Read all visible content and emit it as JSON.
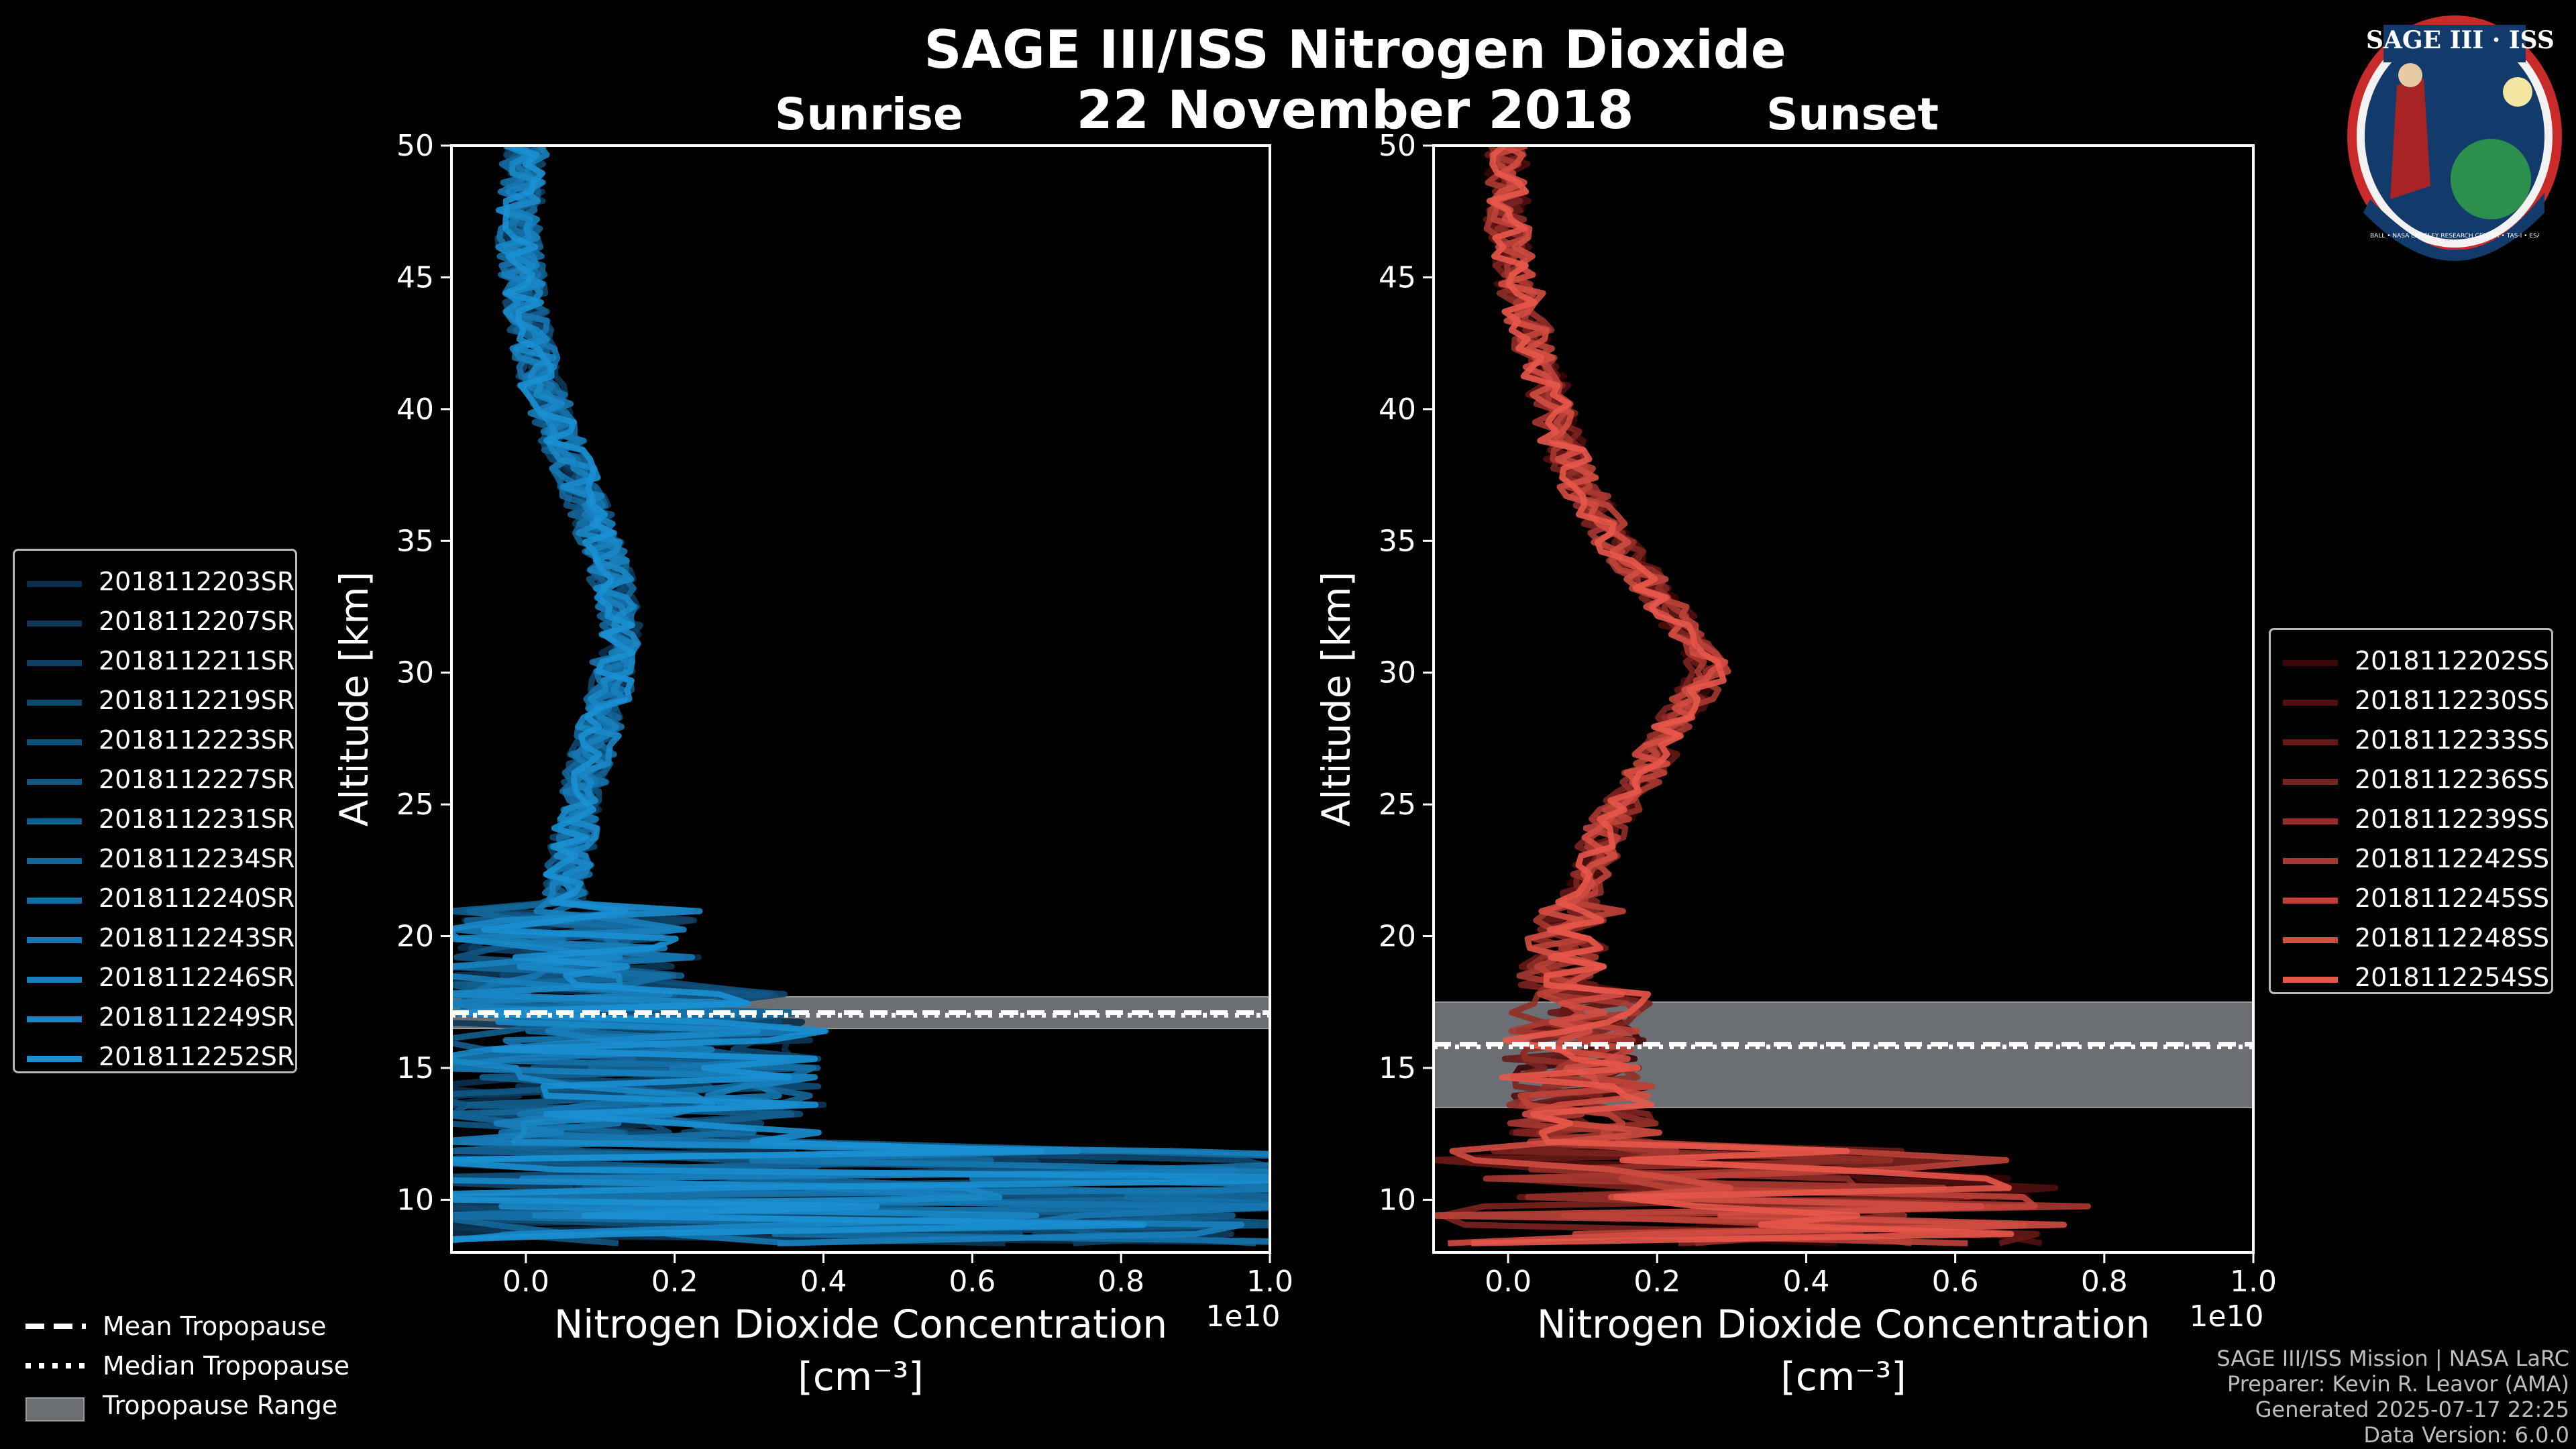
{
  "title": "SAGE III/ISS Nitrogen Dioxide",
  "date": "22 November 2018",
  "logo": {
    "text": "SAGE III · ISS",
    "ring_text": "BALL • NASA LANGLEY RESEARCH CENTER • TAS-I • ESA"
  },
  "colors": {
    "sunrise": "#1a8fd2",
    "sunset": "#e8574a",
    "tropopause_band": "#6b6e72",
    "background": "#000000"
  },
  "chart_data": [
    {
      "type": "line",
      "subtitle": "Sunrise",
      "xlabel": "Nitrogen Dioxide Concentration",
      "xunit": "[cm⁻³]",
      "ylabel": "Altitude [km]",
      "x_multiplier": "1e10",
      "xlim": [
        -0.1,
        1.0
      ],
      "ylim": [
        8,
        50
      ],
      "x_ticks": [
        "0.0",
        "0.2",
        "0.4",
        "0.6",
        "0.8",
        "1.0"
      ],
      "y_ticks": [
        "10",
        "15",
        "20",
        "25",
        "30",
        "35",
        "40",
        "45",
        "50"
      ],
      "tropopause": {
        "mean": 17.1,
        "median": 17.0,
        "range": [
          16.5,
          17.7
        ]
      },
      "profile_shape": [
        [
          0.0,
          50
        ],
        [
          -0.01,
          47
        ],
        [
          0.0,
          44
        ],
        [
          0.02,
          41
        ],
        [
          0.06,
          38
        ],
        [
          0.1,
          35
        ],
        [
          0.13,
          32
        ],
        [
          0.11,
          29
        ],
        [
          0.08,
          26
        ],
        [
          0.06,
          23
        ],
        [
          0.05,
          21
        ],
        [
          0.04,
          19
        ],
        [
          0.03,
          17
        ],
        [
          0.02,
          14
        ],
        [
          0.01,
          11
        ],
        [
          0.0,
          8.5
        ]
      ],
      "series": [
        {
          "name": "2018112203SR"
        },
        {
          "name": "2018112207SR"
        },
        {
          "name": "2018112211SR"
        },
        {
          "name": "2018112219SR"
        },
        {
          "name": "2018112223SR"
        },
        {
          "name": "2018112227SR"
        },
        {
          "name": "2018112231SR"
        },
        {
          "name": "2018112234SR"
        },
        {
          "name": "2018112240SR"
        },
        {
          "name": "2018112243SR"
        },
        {
          "name": "2018112246SR"
        },
        {
          "name": "2018112249SR"
        },
        {
          "name": "2018112252SR"
        }
      ]
    },
    {
      "type": "line",
      "subtitle": "Sunset",
      "xlabel": "Nitrogen Dioxide Concentration",
      "xunit": "[cm⁻³]",
      "ylabel": "Altitude [km]",
      "x_multiplier": "1e10",
      "xlim": [
        -0.1,
        1.0
      ],
      "ylim": [
        8,
        50
      ],
      "x_ticks": [
        "0.0",
        "0.2",
        "0.4",
        "0.6",
        "0.8",
        "1.0"
      ],
      "y_ticks": [
        "10",
        "15",
        "20",
        "25",
        "30",
        "35",
        "40",
        "45",
        "50"
      ],
      "tropopause": {
        "mean": 15.9,
        "median": 15.8,
        "range": [
          13.5,
          17.5
        ]
      },
      "profile_shape": [
        [
          0.0,
          50
        ],
        [
          0.0,
          47
        ],
        [
          0.02,
          44
        ],
        [
          0.05,
          41
        ],
        [
          0.08,
          38
        ],
        [
          0.14,
          35
        ],
        [
          0.23,
          32
        ],
        [
          0.27,
          30
        ],
        [
          0.2,
          27
        ],
        [
          0.13,
          24
        ],
        [
          0.09,
          21
        ],
        [
          0.06,
          18
        ],
        [
          0.05,
          15
        ],
        [
          0.06,
          13
        ],
        [
          0.08,
          11
        ],
        [
          0.05,
          9
        ],
        [
          0.03,
          8.2
        ]
      ],
      "series": [
        {
          "name": "2018112202SS"
        },
        {
          "name": "2018112230SS"
        },
        {
          "name": "2018112233SS"
        },
        {
          "name": "2018112236SS"
        },
        {
          "name": "2018112239SS"
        },
        {
          "name": "2018112242SS"
        },
        {
          "name": "2018112245SS"
        },
        {
          "name": "2018112248SS"
        },
        {
          "name": "2018112254SS"
        }
      ]
    }
  ],
  "shared_legend": {
    "mean": "Mean Tropopause",
    "median": "Median Tropopause",
    "range": "Tropopause Range"
  },
  "footer": {
    "line1": "SAGE III/ISS Mission | NASA LaRC",
    "line2": "Preparer: Kevin R. Leavor (AMA)",
    "line3": "Generated 2025-07-17 22:25",
    "line4": "Data Version: 6.0.0"
  }
}
